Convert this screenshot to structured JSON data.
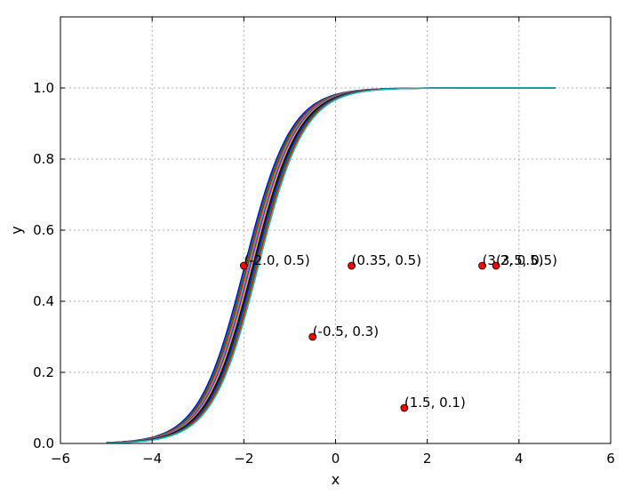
{
  "chart_data": {
    "type": "line",
    "xlabel": "x",
    "ylabel": "y",
    "xlim": [
      -6,
      6
    ],
    "ylim": [
      0,
      1.2
    ],
    "xticks": [
      -6,
      -4,
      -2,
      0,
      2,
      4,
      6
    ],
    "xtick_labels": [
      "−6",
      "−4",
      "−2",
      "0",
      "2",
      "4",
      "6"
    ],
    "yticks": [
      0.0,
      0.2,
      0.4,
      0.6,
      0.8,
      1.0
    ],
    "ytick_labels": [
      "0.0",
      "0.2",
      "0.4",
      "0.6",
      "0.8",
      "1.0"
    ],
    "grid": true,
    "curve_x_range": [
      -5,
      4.8
    ],
    "series": [
      {
        "color": "#0000ff",
        "midpoint": -1.98,
        "scale": 0.5
      },
      {
        "color": "#008000",
        "midpoint": -1.95,
        "scale": 0.5
      },
      {
        "color": "#ff0000",
        "midpoint": -1.92,
        "scale": 0.5
      },
      {
        "color": "#00bfbf",
        "midpoint": -1.89,
        "scale": 0.5
      },
      {
        "color": "#bf00bf",
        "midpoint": -1.86,
        "scale": 0.5
      },
      {
        "color": "#bfbf00",
        "midpoint": -1.83,
        "scale": 0.5
      },
      {
        "color": "#000000",
        "midpoint": -1.8,
        "scale": 0.5
      },
      {
        "color": "#0000ff",
        "midpoint": -1.77,
        "scale": 0.5
      },
      {
        "color": "#008000",
        "midpoint": -1.74,
        "scale": 0.5
      },
      {
        "color": "#ff0000",
        "midpoint": -1.71,
        "scale": 0.5
      },
      {
        "color": "#00bfbf",
        "midpoint": -1.68,
        "scale": 0.5
      }
    ],
    "points": [
      {
        "x": -2.0,
        "y": 0.5,
        "label": "(-2.0, 0.5)"
      },
      {
        "x": 0.35,
        "y": 0.5,
        "label": "(0.35, 0.5)"
      },
      {
        "x": 3.2,
        "y": 0.5,
        "label": "(3.2, 0.5)"
      },
      {
        "x": 3.5,
        "y": 0.5,
        "label": "(3.5, 0.5)"
      },
      {
        "x": -0.5,
        "y": 0.3,
        "label": "(-0.5, 0.3)"
      },
      {
        "x": 1.5,
        "y": 0.1,
        "label": "(1.5, 0.1)"
      }
    ],
    "point_color": "#ff0000"
  }
}
